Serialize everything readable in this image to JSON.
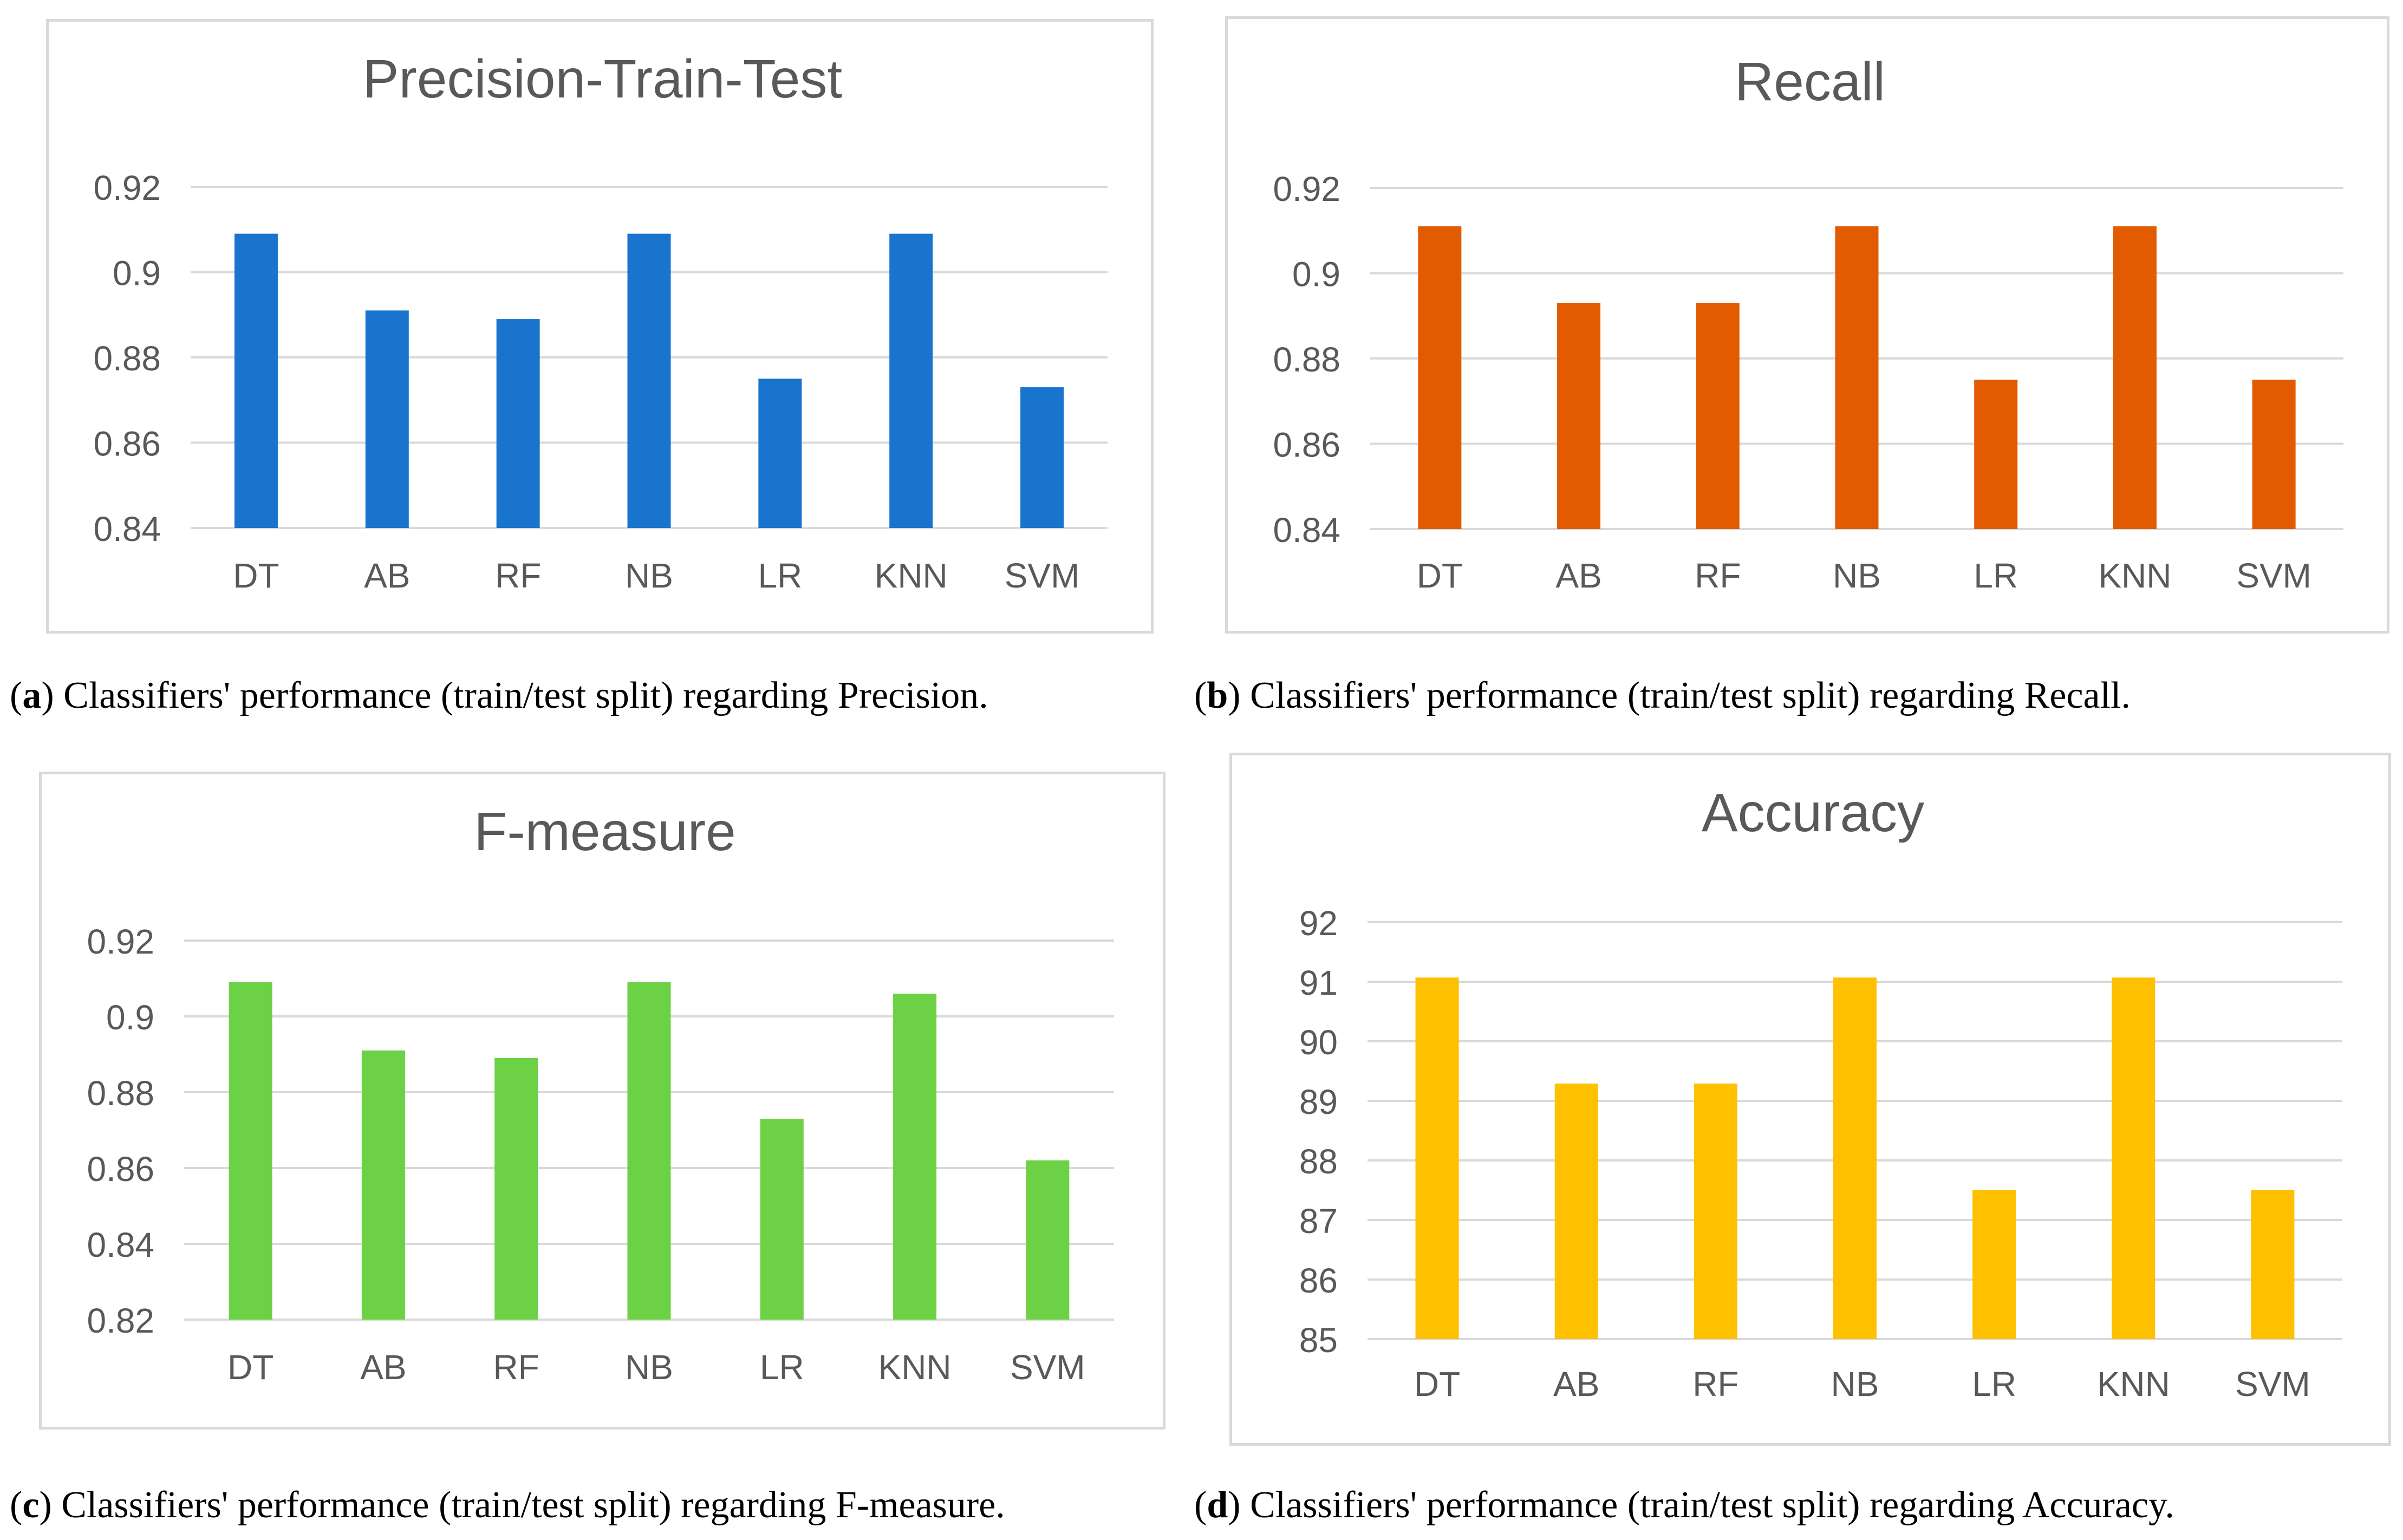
{
  "colors": {
    "precision": "#1874cd",
    "recall": "#e35b00",
    "fmeasure": "#6dd146",
    "accuracy": "#ffc000",
    "grid": "#d9d9d9",
    "text": "#595959"
  },
  "chart_data": [
    {
      "id": "a",
      "type": "bar",
      "title": "Precision-Train-Test",
      "categories": [
        "DT",
        "AB",
        "RF",
        "NB",
        "LR",
        "KNN",
        "SVM"
      ],
      "values": [
        0.909,
        0.891,
        0.889,
        0.909,
        0.875,
        0.909,
        0.873
      ],
      "ylim": [
        0.84,
        0.92
      ],
      "yticks": [
        "0.84",
        "0.86",
        "0.88",
        "0.9",
        "0.92"
      ],
      "xlabel": "",
      "ylabel": "",
      "grid": true,
      "legend": "none"
    },
    {
      "id": "b",
      "type": "bar",
      "title": "Recall",
      "categories": [
        "DT",
        "AB",
        "RF",
        "NB",
        "LR",
        "KNN",
        "SVM"
      ],
      "values": [
        0.911,
        0.893,
        0.893,
        0.911,
        0.875,
        0.911,
        0.875
      ],
      "ylim": [
        0.84,
        0.92
      ],
      "yticks": [
        "0.84",
        "0.86",
        "0.88",
        "0.9",
        "0.92"
      ],
      "xlabel": "",
      "ylabel": "",
      "grid": true,
      "legend": "none"
    },
    {
      "id": "c",
      "type": "bar",
      "title": "F-measure",
      "categories": [
        "DT",
        "AB",
        "RF",
        "NB",
        "LR",
        "KNN",
        "SVM"
      ],
      "values": [
        0.909,
        0.891,
        0.889,
        0.909,
        0.873,
        0.906,
        0.862
      ],
      "ylim": [
        0.82,
        0.92
      ],
      "yticks": [
        "0.82",
        "0.84",
        "0.86",
        "0.88",
        "0.9",
        "0.92"
      ],
      "xlabel": "",
      "ylabel": "",
      "grid": true,
      "legend": "none"
    },
    {
      "id": "d",
      "type": "bar",
      "title": "Accuracy",
      "categories": [
        "DT",
        "AB",
        "RF",
        "NB",
        "LR",
        "KNN",
        "SVM"
      ],
      "values": [
        91.07,
        89.29,
        89.29,
        91.07,
        87.5,
        91.07,
        87.5
      ],
      "ylim": [
        85,
        92
      ],
      "yticks": [
        "85",
        "86",
        "87",
        "88",
        "89",
        "90",
        "91",
        "92"
      ],
      "xlabel": "",
      "ylabel": "",
      "grid": true,
      "legend": "none"
    }
  ],
  "captions": {
    "a": {
      "letter": "a",
      "text": "Classifiers' performance (train/test split) regarding Precision."
    },
    "b": {
      "letter": "b",
      "text": "Classifiers' performance (train/test split) regarding Recall."
    },
    "c": {
      "letter": "c",
      "text": "Classifiers' performance (train/test split) regarding F-measure."
    },
    "d": {
      "letter": "d",
      "text": "Classifiers' performance (train/test split) regarding Accuracy."
    }
  }
}
